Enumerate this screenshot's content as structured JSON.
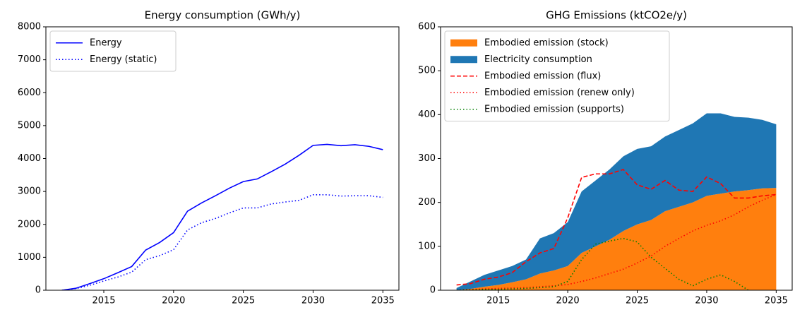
{
  "chart_data": [
    {
      "type": "line",
      "title": "Energy consumption (GWh/y)",
      "x": [
        2012,
        2013,
        2014,
        2015,
        2016,
        2017,
        2018,
        2019,
        2020,
        2021,
        2022,
        2023,
        2024,
        2025,
        2026,
        2027,
        2028,
        2029,
        2030,
        2031,
        2032,
        2033,
        2034,
        2035
      ],
      "xlim": [
        2010.85,
        2036.15
      ],
      "xticks": [
        2015,
        2020,
        2025,
        2030,
        2035
      ],
      "ylim": [
        0,
        8000
      ],
      "yticks": [
        0,
        1000,
        2000,
        3000,
        4000,
        5000,
        6000,
        7000,
        8000
      ],
      "legend": "upper left",
      "series": [
        {
          "name": "Energy",
          "color": "#0000ff",
          "style": "solid",
          "values": [
            0,
            60,
            200,
            350,
            530,
            720,
            1220,
            1450,
            1750,
            2400,
            2650,
            2870,
            3100,
            3300,
            3380,
            3600,
            3830,
            4100,
            4400,
            4430,
            4390,
            4420,
            4370,
            4270
          ]
        },
        {
          "name": "Energy (static)",
          "color": "#0000ff",
          "style": "dotted",
          "values": [
            0,
            50,
            150,
            280,
            400,
            550,
            930,
            1050,
            1230,
            1830,
            2050,
            2180,
            2350,
            2500,
            2500,
            2620,
            2680,
            2730,
            2900,
            2900,
            2860,
            2870,
            2870,
            2820
          ]
        }
      ]
    },
    {
      "type": "line",
      "title": "GHG Emissions (ktCO2e/y)",
      "x": [
        2012,
        2013,
        2014,
        2015,
        2016,
        2017,
        2018,
        2019,
        2020,
        2021,
        2022,
        2023,
        2024,
        2025,
        2026,
        2027,
        2028,
        2029,
        2030,
        2031,
        2032,
        2033,
        2034,
        2035
      ],
      "xlim": [
        2010.85,
        2036.15
      ],
      "xticks": [
        2015,
        2020,
        2025,
        2030,
        2035
      ],
      "ylim": [
        0,
        600
      ],
      "yticks": [
        0,
        100,
        200,
        300,
        400,
        500,
        600
      ],
      "legend": "upper left",
      "series": [
        {
          "name": "Embodied emission (stock)",
          "color": "#ff7f0e",
          "style": "area",
          "values": [
            0,
            3,
            8,
            12,
            18,
            25,
            38,
            45,
            55,
            85,
            100,
            115,
            135,
            150,
            160,
            180,
            190,
            200,
            215,
            220,
            225,
            228,
            232,
            233
          ]
        },
        {
          "name": "Electricity consumption",
          "color": "#1f77b4",
          "style": "area",
          "values": [
            5,
            17,
            27,
            33,
            37,
            45,
            80,
            85,
            100,
            140,
            150,
            160,
            170,
            172,
            168,
            170,
            175,
            180,
            188,
            183,
            170,
            165,
            156,
            145
          ]
        },
        {
          "name": "Embodied emission (flux)",
          "color": "#ff0000",
          "style": "dashed",
          "values": [
            12,
            15,
            25,
            30,
            40,
            65,
            85,
            95,
            165,
            257,
            265,
            265,
            275,
            240,
            230,
            250,
            228,
            225,
            258,
            243,
            210,
            210,
            215,
            218
          ]
        },
        {
          "name": "Embodied emission (renew only)",
          "color": "#ff0000",
          "style": "dotted",
          "values": [
            0,
            2,
            3,
            4,
            5,
            6,
            8,
            10,
            13,
            20,
            28,
            38,
            48,
            62,
            78,
            100,
            118,
            135,
            148,
            158,
            172,
            190,
            205,
            218
          ]
        },
        {
          "name": "Embodied emission (supports)",
          "color": "#008000",
          "style": "dotted",
          "values": [
            0,
            1,
            2,
            2,
            3,
            4,
            6,
            8,
            20,
            70,
            105,
            112,
            118,
            110,
            75,
            50,
            25,
            10,
            25,
            35,
            20,
            0,
            null,
            null
          ]
        }
      ]
    }
  ]
}
